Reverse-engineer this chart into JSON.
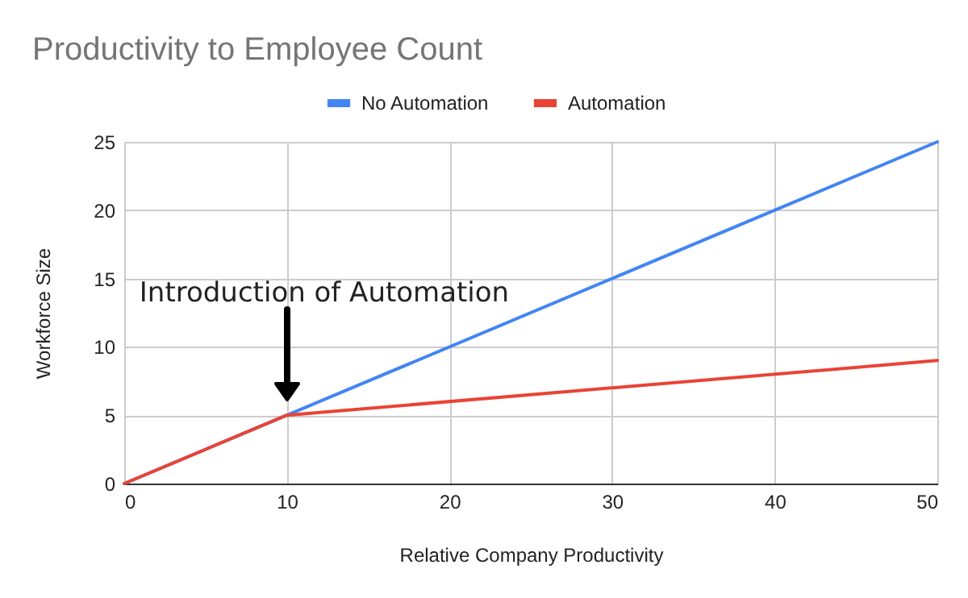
{
  "chart_data": {
    "type": "line",
    "title": "Productivity to Employee Count",
    "xlabel": "Relative Company Productivity",
    "ylabel": "Workforce Size",
    "x": [
      0,
      10,
      50
    ],
    "series": [
      {
        "name": "No Automation",
        "color": "#4285f4",
        "values": [
          0,
          5,
          25
        ]
      },
      {
        "name": "Automation",
        "color": "#ea4335",
        "values": [
          0,
          5,
          9
        ]
      }
    ],
    "xlim": [
      0,
      50
    ],
    "xticks": [
      0,
      10,
      20,
      30,
      40,
      50
    ],
    "ylim": [
      0,
      25
    ],
    "yticks": [
      0,
      5,
      10,
      15,
      20,
      25
    ],
    "grid": true,
    "legend": "top",
    "marker": "none",
    "line_style": "solid",
    "annotations": [
      "Introduction of Automation"
    ]
  }
}
